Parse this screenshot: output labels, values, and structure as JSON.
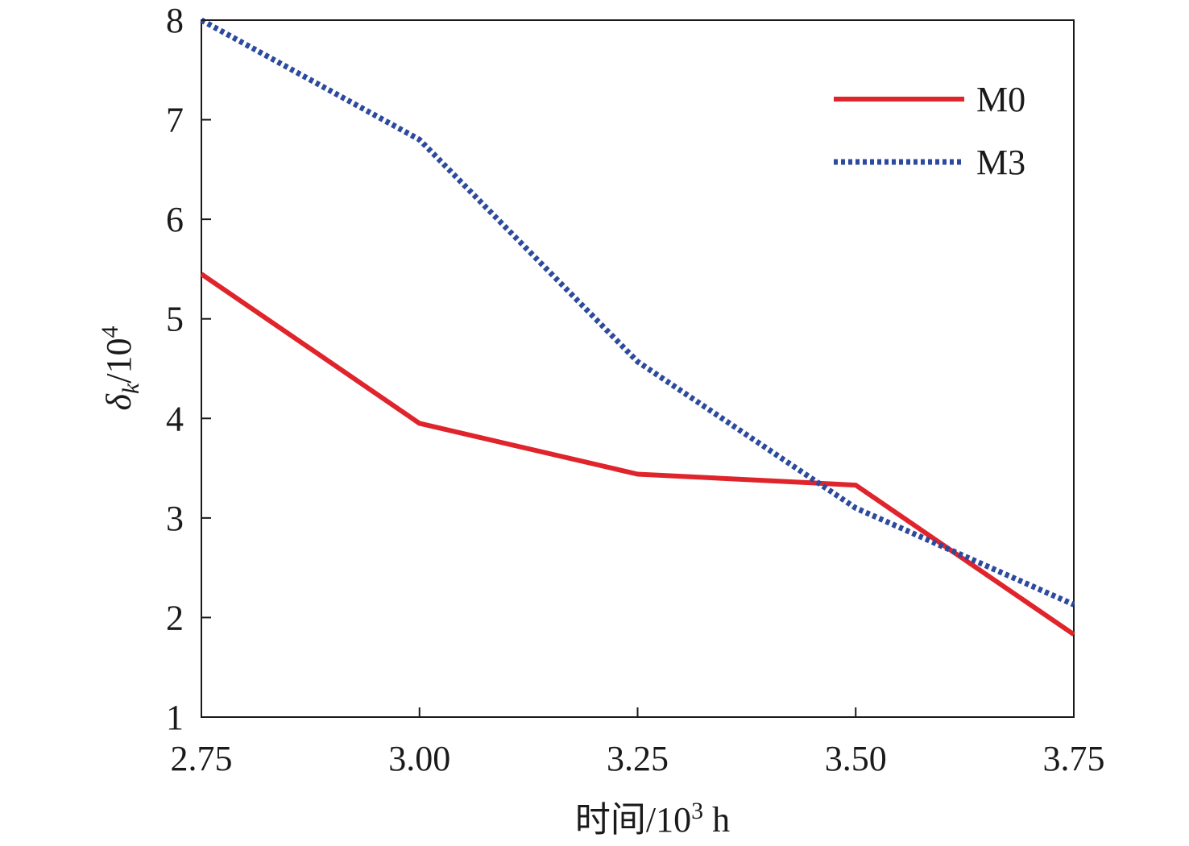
{
  "chart_data": {
    "type": "line",
    "title": "",
    "xlabel": "时间/10³ h",
    "xlabel_parts": {
      "main": "时间/10",
      "sup": "3",
      "tail": " h"
    },
    "ylabel": "δk/10⁴",
    "ylabel_parts": {
      "main": "δ",
      "sub": "k",
      "mid": "/10",
      "sup": "4"
    },
    "x": [
      2.75,
      3.0,
      3.25,
      3.5,
      3.75
    ],
    "x_tick_labels": [
      "2.75",
      "3.00",
      "3.25",
      "3.50",
      "3.75"
    ],
    "y_ticks": [
      1,
      2,
      3,
      4,
      5,
      6,
      7,
      8
    ],
    "y_tick_labels": [
      "1",
      "2",
      "3",
      "4",
      "5",
      "6",
      "7",
      "8"
    ],
    "xlim": [
      2.75,
      3.75
    ],
    "ylim": [
      1,
      8
    ],
    "grid": false,
    "legend_position": "top-right",
    "series": [
      {
        "name": "M0",
        "values": [
          5.45,
          3.95,
          3.44,
          3.33,
          1.83
        ],
        "color": "#e0242b",
        "style": "solid"
      },
      {
        "name": "M3",
        "values": [
          8.0,
          6.8,
          4.57,
          3.1,
          2.13
        ],
        "color": "#2c4a9e",
        "style": "dotted"
      }
    ]
  }
}
